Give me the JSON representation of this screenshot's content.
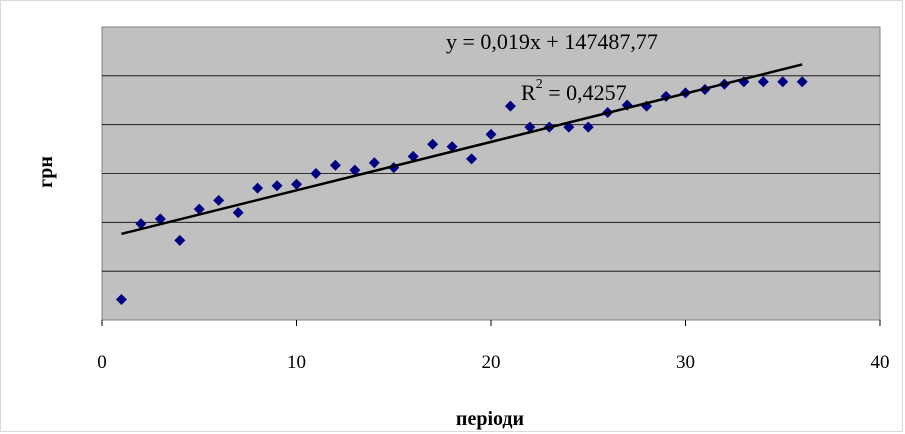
{
  "chart_data": {
    "type": "scatter",
    "xlabel": "періоди",
    "ylabel": "грн",
    "xlim": [
      0,
      40
    ],
    "x_ticks": [
      "0",
      "10",
      "20",
      "30",
      "40"
    ],
    "y_tick_labels": "none",
    "y_gridlines": 5,
    "grid": true,
    "plot_background": "#c0c0c0",
    "marker_color": "#000080",
    "trendline": {
      "type": "linear",
      "equation": "y = 0,019x + 147487,77",
      "r_squared_label": "R",
      "r_squared_sup": "2",
      "r_squared_value": " = 0,4257",
      "color": "#000000"
    },
    "series": [
      {
        "x": [
          1,
          2,
          3,
          4,
          5,
          6,
          7,
          8,
          9,
          10,
          11,
          12,
          13,
          14,
          15,
          16,
          17,
          18,
          19,
          20,
          21,
          22,
          23,
          24,
          25,
          26,
          27,
          28,
          29,
          30,
          31,
          32,
          33,
          34,
          35,
          36
        ],
        "y": [
          0.42,
          1.97,
          2.07,
          1.63,
          2.27,
          2.45,
          2.2,
          2.7,
          2.75,
          2.78,
          3.0,
          3.17,
          3.07,
          3.22,
          3.12,
          3.35,
          3.6,
          3.55,
          3.3,
          3.8,
          4.38,
          3.95,
          3.95,
          3.95,
          3.95,
          4.25,
          4.4,
          4.38,
          4.58,
          4.65,
          4.72,
          4.83,
          4.88,
          4.88,
          4.88,
          4.88
        ]
      }
    ],
    "y_range_gridline_units": [
      0,
      6
    ]
  }
}
